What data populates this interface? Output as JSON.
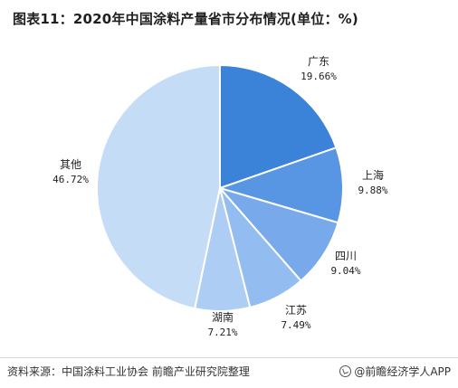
{
  "title": "图表11：2020年中国涂料产量省市分布情况(单位：%)",
  "source": "资料来源：中国涂料工业协会 前瞻产业研究院整理",
  "brand": "@前瞻经济学人APP",
  "colors": {
    "广东": "#3b82d9",
    "上海": "#5895e3",
    "四川": "#77a9eb",
    "江苏": "#93bcf0",
    "湖南": "#aecdf4",
    "其他": "#c5dcf7"
  },
  "chart_data": {
    "type": "pie",
    "title": "图表11：2020年中国涂料产量省市分布情况(单位：%)",
    "unit": "%",
    "slices": [
      {
        "label": "广东",
        "value": 19.66,
        "display": "19.66%"
      },
      {
        "label": "上海",
        "value": 9.88,
        "display": "9.88%"
      },
      {
        "label": "四川",
        "value": 9.04,
        "display": "9.04%"
      },
      {
        "label": "江苏",
        "value": 7.49,
        "display": "7.49%"
      },
      {
        "label": "湖南",
        "value": 7.21,
        "display": "7.21%"
      },
      {
        "label": "其他",
        "value": 46.72,
        "display": "46.72%"
      }
    ]
  }
}
